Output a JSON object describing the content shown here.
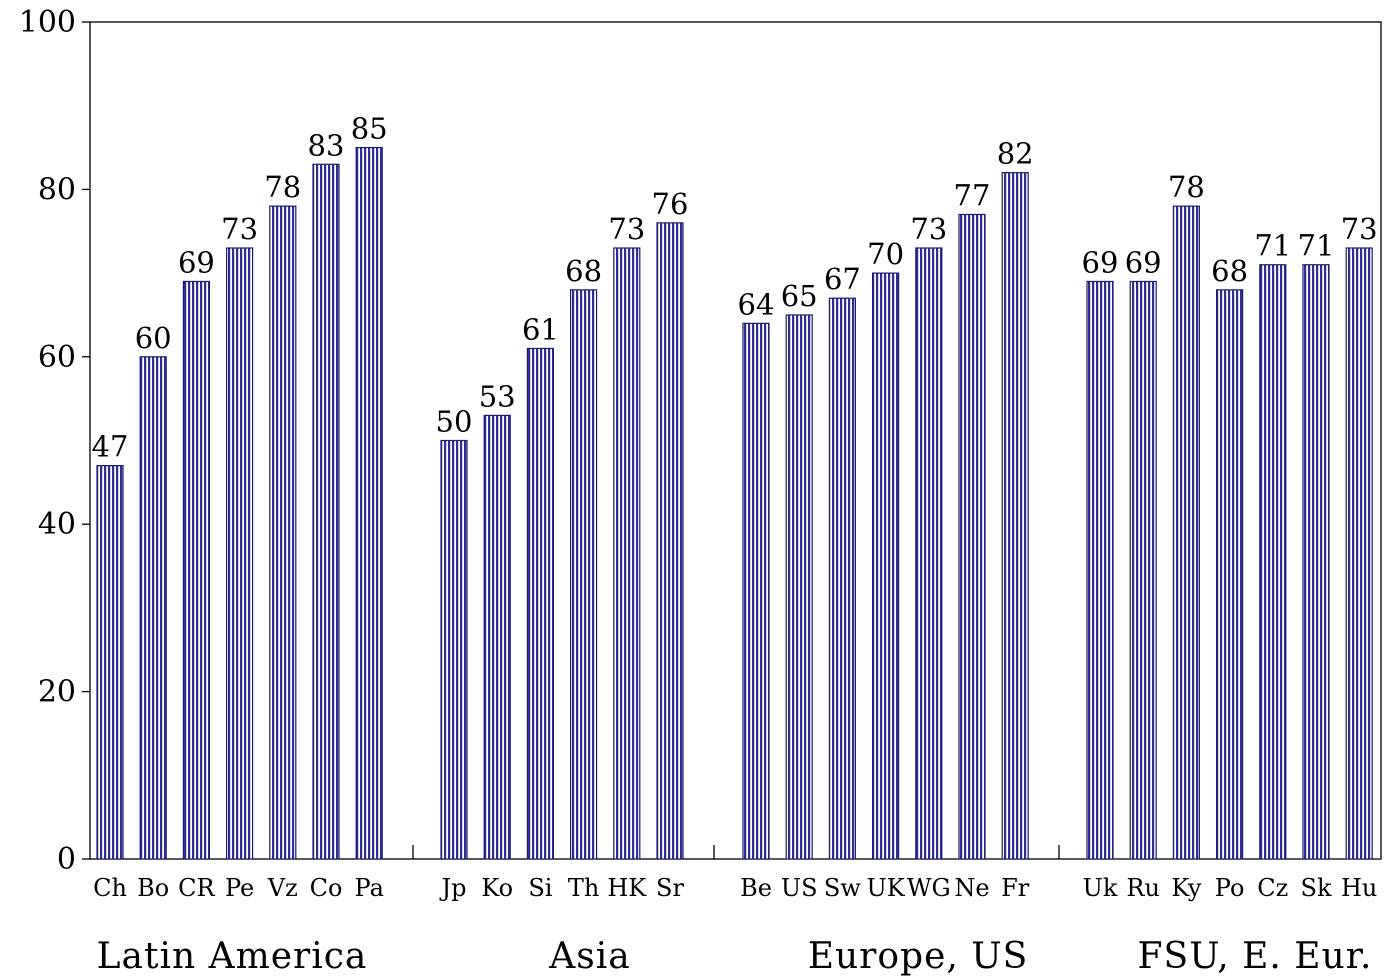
{
  "chart_data": {
    "type": "bar",
    "title": "",
    "xlabel": "",
    "ylabel": "",
    "ylim": [
      0,
      100
    ],
    "yticks": [
      "0",
      "20",
      "40",
      "60",
      "80",
      "100"
    ],
    "grid": false,
    "legend": "none",
    "bar_color": "#3a3aa0",
    "groups": [
      {
        "name": "Latin America",
        "categories": [
          "Ch",
          "Bo",
          "CR",
          "Pe",
          "Vz",
          "Co",
          "Pa"
        ],
        "values": [
          47,
          60,
          69,
          73,
          78,
          83,
          85
        ]
      },
      {
        "name": "Asia",
        "categories": [
          "Jp",
          "Ko",
          "Si",
          "Th",
          "HK",
          "Sr"
        ],
        "values": [
          50,
          53,
          61,
          68,
          73,
          76
        ]
      },
      {
        "name": "Europe, US",
        "categories": [
          "Be",
          "US",
          "Sw",
          "UK",
          "WG",
          "Ne",
          "Fr"
        ],
        "values": [
          64,
          65,
          67,
          70,
          73,
          77,
          82
        ]
      },
      {
        "name": "FSU, E. Eur.",
        "categories": [
          "Uk",
          "Ru",
          "Ky",
          "Po",
          "Cz",
          "Sk",
          "Hu"
        ],
        "values": [
          69,
          69,
          78,
          68,
          71,
          71,
          73
        ]
      }
    ]
  }
}
